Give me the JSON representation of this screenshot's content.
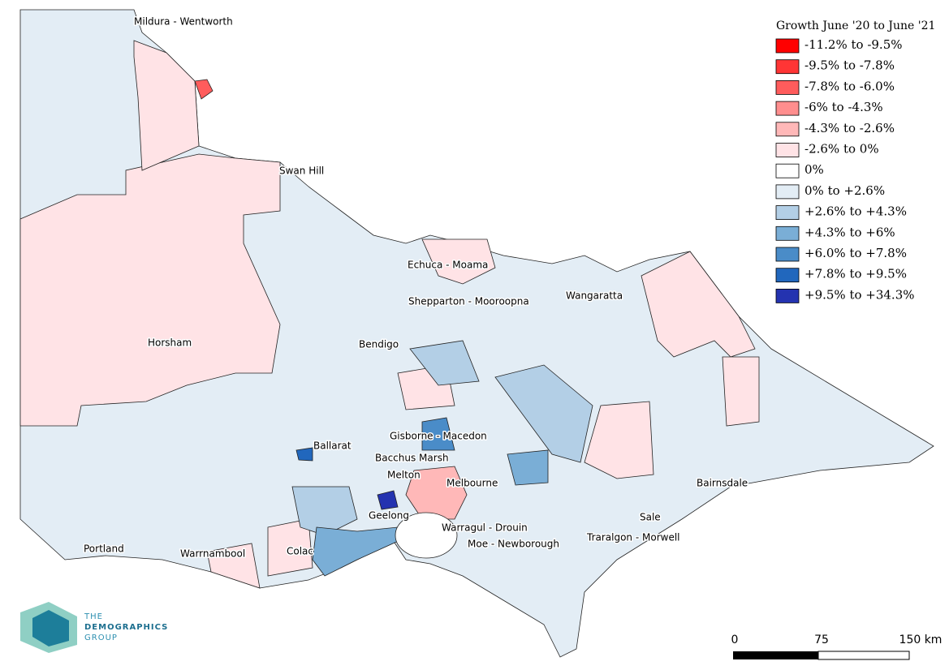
{
  "legend": {
    "title": "Growth June '20 to June '21",
    "items": [
      {
        "label": "-11.2% to -9.5%",
        "color": "#ff0000"
      },
      {
        "label": "-9.5% to -7.8%",
        "color": "#ff3535"
      },
      {
        "label": "-7.8% to -6.0%",
        "color": "#ff5c5c"
      },
      {
        "label": "-6% to -4.3%",
        "color": "#ff8e8e"
      },
      {
        "label": "-4.3% to -2.6%",
        "color": "#ffb8b8"
      },
      {
        "label": "-2.6% to 0%",
        "color": "#ffe3e6"
      },
      {
        "label": "0%",
        "color": "#ffffff"
      },
      {
        "label": "0% to +2.6%",
        "color": "#e3edf5"
      },
      {
        "label": "+2.6% to +4.3%",
        "color": "#b3cfe6"
      },
      {
        "label": "+4.3% to +6%",
        "color": "#7aaed6"
      },
      {
        "label": "+6.0% to +7.8%",
        "color": "#4a8cc8"
      },
      {
        "label": "+7.8% to +9.5%",
        "color": "#2167bd"
      },
      {
        "label": "+9.5% to +34.3%",
        "color": "#2433b0"
      }
    ]
  },
  "places": [
    "Mildura - Wentworth",
    "Swan Hill",
    "Echuca - Moama",
    "Shepparton - Mooroopna",
    "Wangaratta",
    "Horsham",
    "Bendigo",
    "Gisborne - Macedon",
    "Ballarat",
    "Bacchus Marsh",
    "Melton",
    "Melbourne",
    "Bairnsdale",
    "Geelong",
    "Sale",
    "Warragul - Drouin",
    "Traralgon - Morwell",
    "Moe - Newborough",
    "Portland",
    "Warrnambool",
    "Colac"
  ],
  "scale_bar": {
    "labels": [
      "0",
      "75",
      "150 km"
    ]
  },
  "logo": {
    "lines": [
      "THE",
      "DEMOGRAPHICS",
      "GROUP"
    ]
  }
}
